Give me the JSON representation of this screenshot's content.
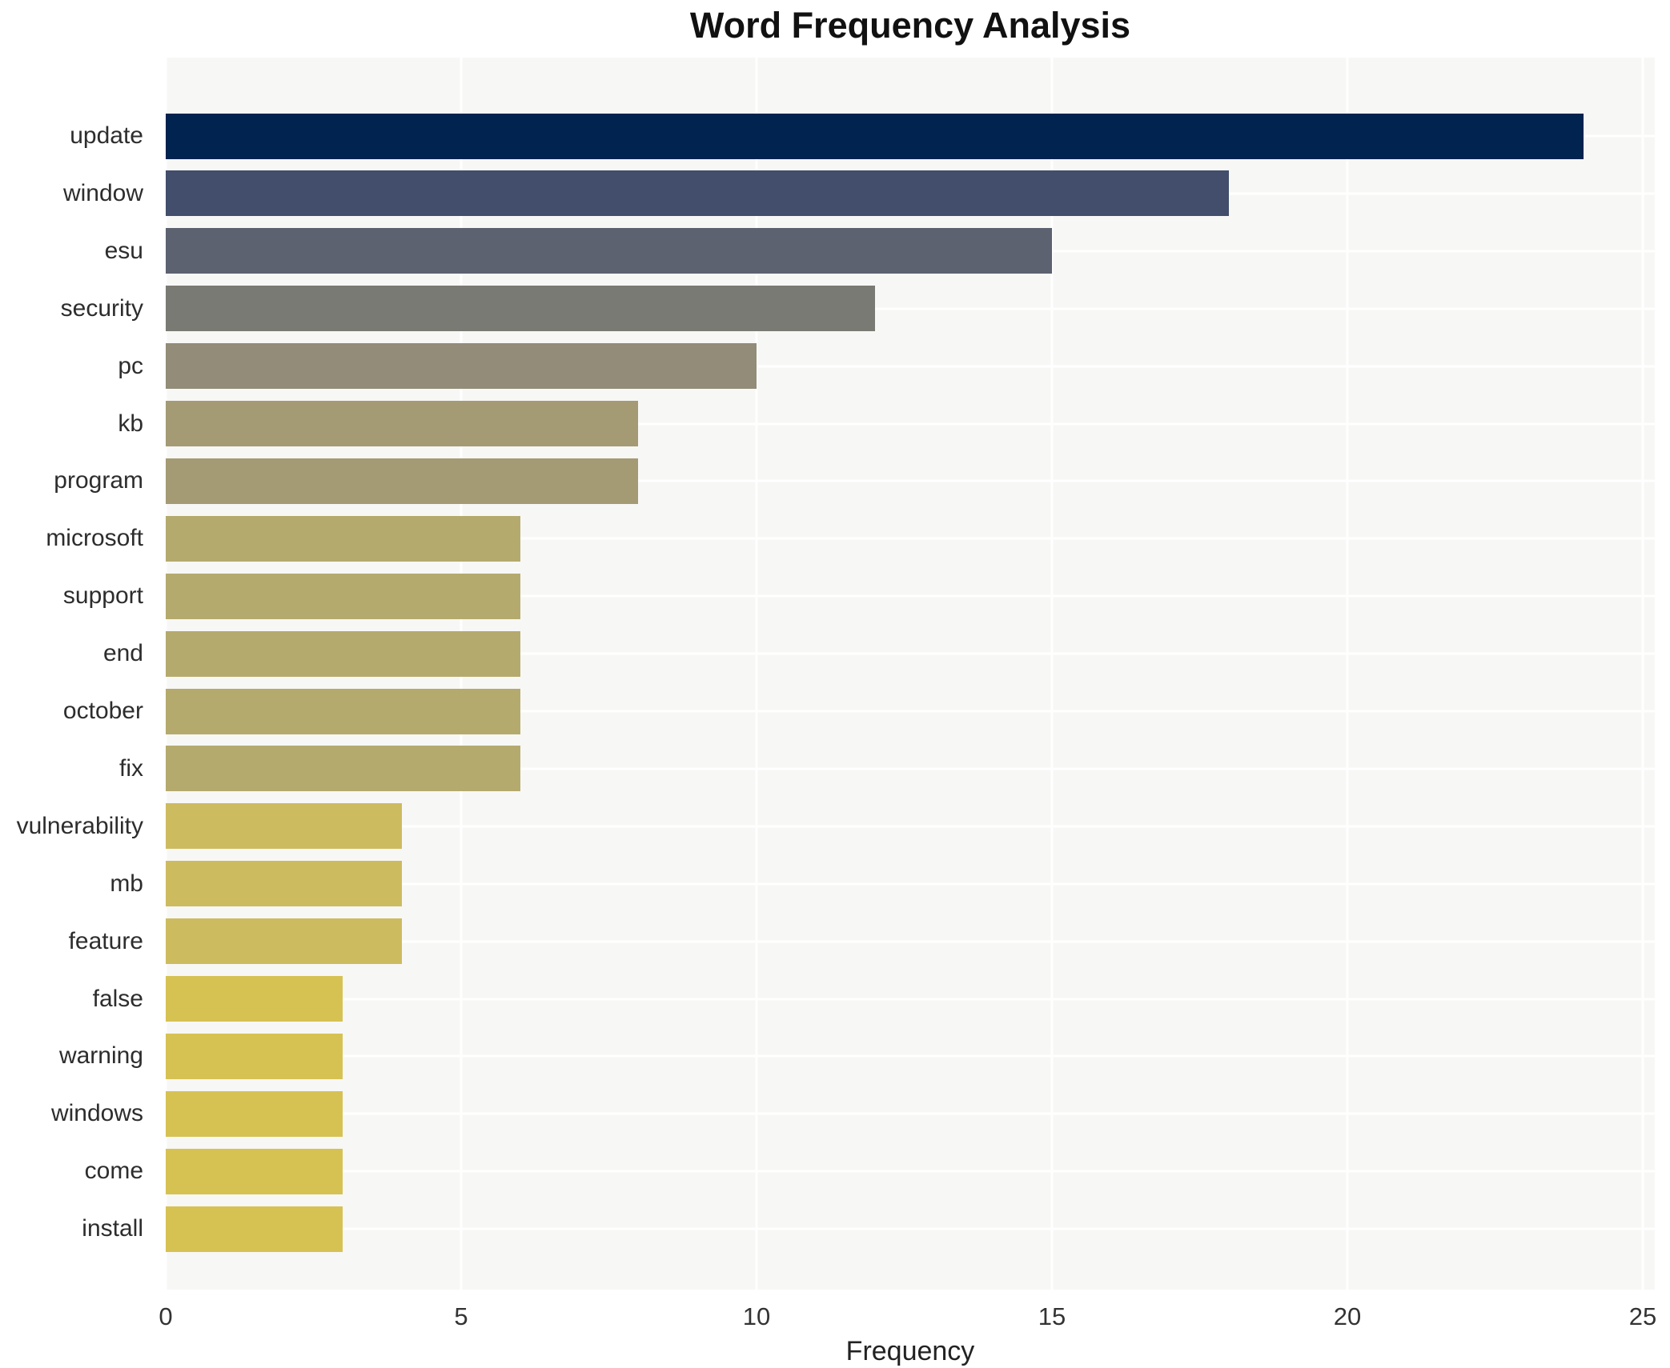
{
  "chart_data": {
    "type": "bar",
    "orientation": "horizontal",
    "title": "Word Frequency Analysis",
    "xlabel": "Frequency",
    "ylabel": "",
    "xlim": [
      0,
      25
    ],
    "xticks": [
      0,
      5,
      10,
      15,
      20,
      25
    ],
    "grid": true,
    "legend": false,
    "categories": [
      "update",
      "window",
      "esu",
      "security",
      "pc",
      "kb",
      "program",
      "microsoft",
      "support",
      "end",
      "october",
      "fix",
      "vulnerability",
      "mb",
      "feature",
      "false",
      "warning",
      "windows",
      "come",
      "install"
    ],
    "values": [
      24,
      18,
      15,
      12,
      10,
      8,
      8,
      6,
      6,
      6,
      6,
      6,
      4,
      4,
      4,
      3,
      3,
      3,
      3,
      3
    ],
    "bar_colors": [
      "#00234f",
      "#424e6b",
      "#5c6270",
      "#7a7a74",
      "#928c78",
      "#a49b74",
      "#a49b74",
      "#b5aa6d",
      "#b5aa6d",
      "#b5aa6d",
      "#b5aa6d",
      "#b5aa6d",
      "#cdbb60",
      "#cdbb60",
      "#cdbb60",
      "#d6c253",
      "#d6c253",
      "#d6c253",
      "#d6c253",
      "#d6c253"
    ],
    "colors": {
      "plot_background": "#f7f7f6",
      "page_background": "#ffffff",
      "gridline": "#ffffff",
      "title_text": "#111111",
      "label_text": "#2d2d2d",
      "tick_text": "#333333"
    }
  }
}
